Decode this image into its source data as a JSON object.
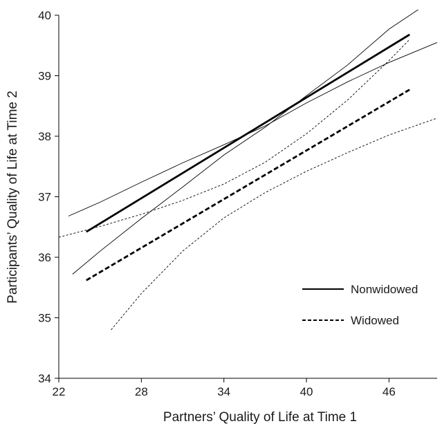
{
  "chart_data": {
    "type": "line",
    "xlabel": "Partners’ Quality of Life at Time 1",
    "ylabel": "Participants’ Quality of Life at Time 2",
    "xlim": [
      22,
      49.5
    ],
    "ylim": [
      34,
      40
    ],
    "xticks": [
      22,
      28,
      34,
      40,
      46
    ],
    "yticks": [
      34,
      35,
      36,
      37,
      38,
      39,
      40
    ],
    "grid": false,
    "legend_position": "right",
    "series": [
      {
        "name": "Nonwidowed",
        "style": "solid",
        "x": [
          24,
          47.5
        ],
        "y": [
          36.42,
          39.68
        ],
        "ci_lower": {
          "x": [
            22.7,
            25,
            28,
            31,
            34,
            37,
            40,
            43,
            46,
            49.5
          ],
          "y": [
            36.68,
            36.91,
            37.24,
            37.56,
            37.86,
            38.17,
            38.55,
            38.9,
            39.22,
            39.55
          ]
        },
        "ci_upper": {
          "x": [
            23,
            25,
            28,
            31,
            34,
            37,
            40,
            43,
            46,
            48.5
          ],
          "y": [
            35.72,
            36.1,
            36.64,
            37.16,
            37.69,
            38.15,
            38.67,
            39.18,
            39.77,
            40.15
          ]
        }
      },
      {
        "name": "Widowed",
        "style": "dashed",
        "x": [
          24,
          47.5
        ],
        "y": [
          35.62,
          38.77
        ],
        "ci_lower": {
          "x": [
            22,
            25,
            28,
            31,
            34,
            37,
            40,
            43,
            46,
            47.5
          ],
          "y": [
            36.33,
            36.51,
            36.71,
            36.94,
            37.21,
            37.57,
            38.04,
            38.6,
            39.25,
            39.6
          ]
        },
        "ci_upper": {
          "x": [
            25.8,
            28,
            31,
            34,
            37,
            40,
            43,
            46,
            49.5
          ],
          "y": [
            34.8,
            35.4,
            36.1,
            36.65,
            37.07,
            37.42,
            37.73,
            38.02,
            38.3
          ]
        }
      }
    ]
  }
}
